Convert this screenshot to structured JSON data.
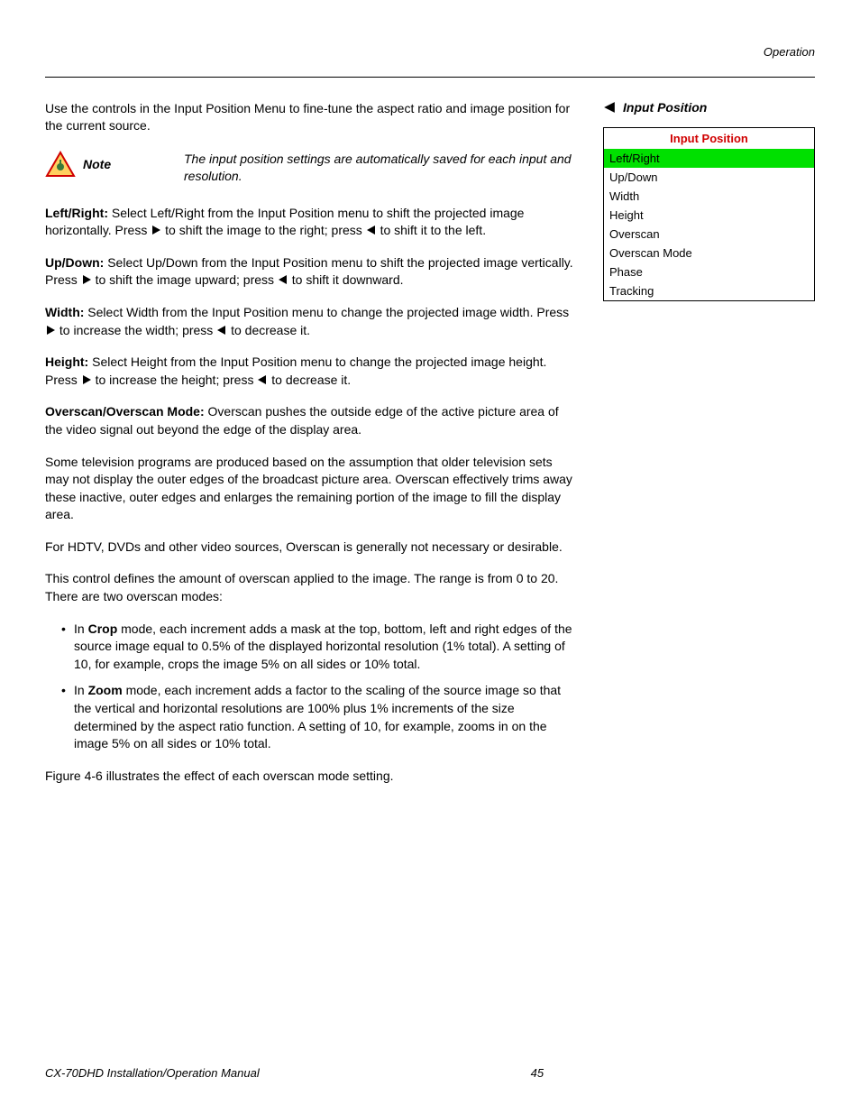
{
  "header": {
    "section": "Operation"
  },
  "intro": "Use the controls in the Input Position Menu to fine-tune the aspect ratio and image position for the current source.",
  "note": {
    "label": "Note",
    "text": "The input position settings are automatically saved for each input and resolution.",
    "icon_border": "#d00000",
    "icon_fill": "#ffd060"
  },
  "paragraphs": {
    "lr_label": "Left/Right:",
    "lr_text_a": " Select Left/Right from the Input Position menu to shift the projected image horizontally. Press ",
    "lr_text_b": " to shift the image to the right; press ",
    "lr_text_c": " to shift it to the left.",
    "ud_label": "Up/Down:",
    "ud_text_a": " Select Up/Down from the Input Position menu to shift the projected image vertically. Press ",
    "ud_text_b": " to shift the image upward; press ",
    "ud_text_c": " to shift it downward.",
    "w_label": "Width:",
    "w_text_a": " Select Width from the Input Position menu to change the projected image width. Press ",
    "w_text_b": " to increase the width; press ",
    "w_text_c": " to decrease it.",
    "h_label": "Height:",
    "h_text_a": " Select Height from the Input Position menu to change the projected image height. Press ",
    "h_text_b": " to increase the height; press ",
    "h_text_c": " to decrease it.",
    "ov_label": "Overscan/Overscan Mode:",
    "ov_text": " Overscan pushes the outside edge of the active picture area of the video signal out beyond the edge of the display area.",
    "ov_p2": "Some television programs are produced based on the assumption that older television sets may not display the outer edges of the broadcast picture area. Overscan effectively trims away these inactive, outer edges and enlarges the remaining portion of the image to fill the display area.",
    "ov_p3": "For HDTV, DVDs and other video sources, Overscan is generally not necessary or desirable.",
    "ov_p4": "This control defines the amount of overscan applied to the image. The range is from 0 to 20. There are two overscan modes:",
    "crop_label": "Crop",
    "crop_pre": "In ",
    "crop_text": " mode, each increment adds a mask at the top, bottom, left and right edges of the source image equal to 0.5% of the displayed horizontal resolution (1% total). A setting of 10, for example, crops the image 5% on all sides or 10% total.",
    "zoom_label": "Zoom",
    "zoom_pre": "In ",
    "zoom_text": " mode, each increment adds a factor to the scaling of the source image so that the vertical and horizontal resolutions are 100% plus 1% increments of the size determined by the aspect ratio function. A setting of 10, for example, zooms in on the image 5% on all sides or 10% total.",
    "fig_ref": "Figure 4-6 illustrates the effect of each overscan mode setting."
  },
  "side": {
    "callout": "Input Position",
    "menu_title": "Input Position",
    "menu_title_color": "#d00000",
    "highlight_color": "#00e000",
    "items": [
      {
        "label": "Left/Right",
        "selected": true
      },
      {
        "label": "Up/Down",
        "selected": false
      },
      {
        "label": "Width",
        "selected": false
      },
      {
        "label": "Height",
        "selected": false
      },
      {
        "label": "Overscan",
        "selected": false
      },
      {
        "label": "Overscan Mode",
        "selected": false
      },
      {
        "label": "Phase",
        "selected": false
      },
      {
        "label": "Tracking",
        "selected": false
      }
    ]
  },
  "footer": {
    "doc": "CX-70DHD Installation/Operation Manual",
    "page": "45"
  },
  "arrow_color": "#000000"
}
